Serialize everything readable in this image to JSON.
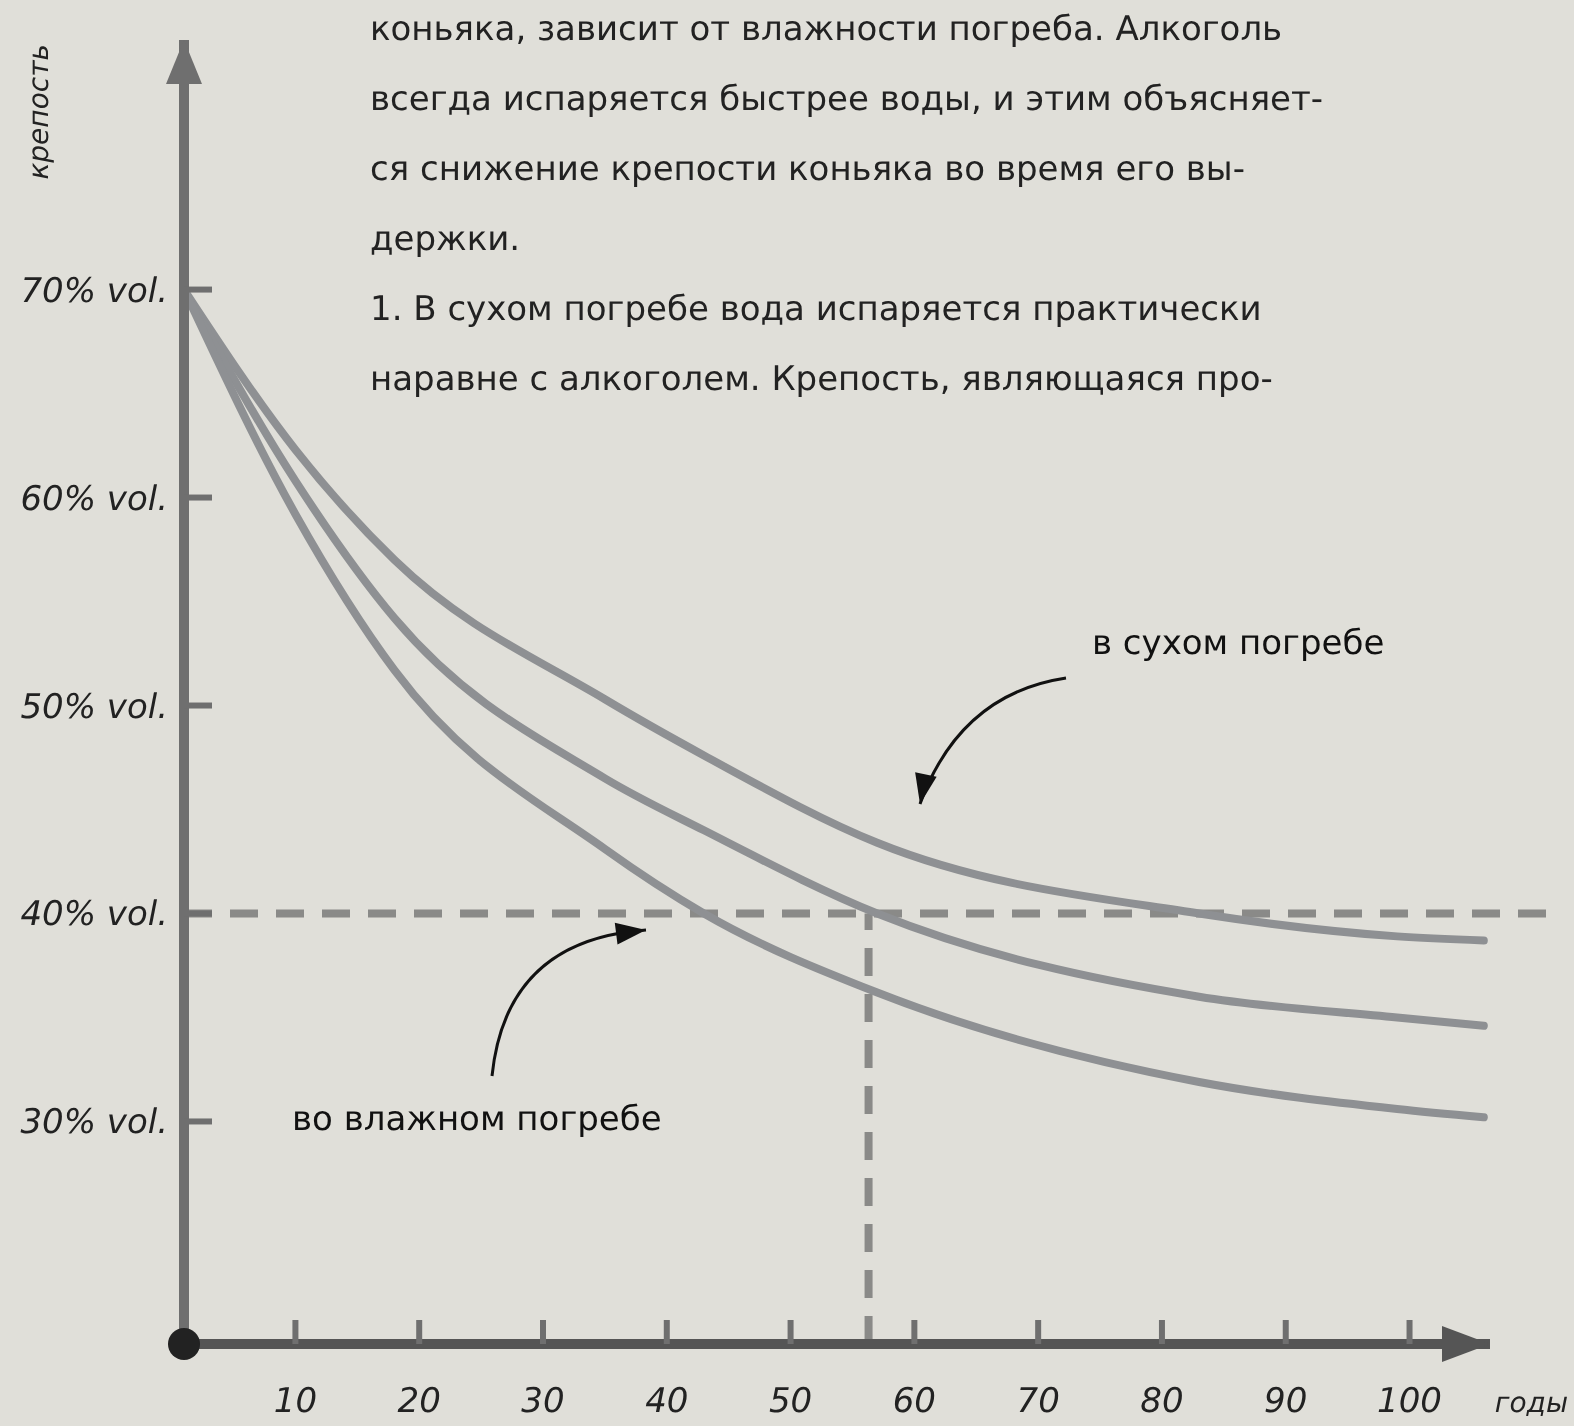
{
  "chart_data": {
    "type": "line",
    "xlabel": "годы",
    "ylabel": "крепость",
    "xlim": [
      1,
      106.5
    ],
    "ylim": [
      19.3,
      82
    ],
    "xticks": [
      10,
      20,
      30,
      40,
      50,
      60,
      70,
      80,
      90,
      100
    ],
    "yticks": [
      {
        "value": 30,
        "label": "30% vol."
      },
      {
        "value": 40,
        "label": "40% vol."
      },
      {
        "value": 50,
        "label": "50% vol."
      },
      {
        "value": 60,
        "label": "60% vol."
      },
      {
        "value": 70,
        "label": "70% vol."
      }
    ],
    "x": [
      1,
      10,
      18,
      35,
      43,
      57,
      83,
      99,
      106
    ],
    "series": [
      {
        "color": "#8e9093",
        "values": [
          70,
          62.3,
          57,
          50.3,
          47.6,
          43.4,
          40,
          38.9,
          38.7
        ]
      },
      {
        "color": "#8e9093",
        "values": [
          70,
          60.8,
          54.2,
          46.5,
          44,
          40,
          36,
          35,
          34.6
        ]
      },
      {
        "color": "#8e9093",
        "values": [
          70,
          59.2,
          51.7,
          43.1,
          40,
          36.2,
          31.9,
          30.6,
          30.2
        ]
      }
    ],
    "ref_lines": [
      {
        "axis": "y",
        "value": 40,
        "color": "#8a8a88",
        "line_style": "dashed"
      },
      {
        "axis": "x",
        "value": 56.3,
        "color": "#8a8a88",
        "line_style": "dashed"
      }
    ],
    "annotations": [
      "коньяка, зависит от влажности погреба. Алкоголь\nвсегда испаряется быстрее воды, и этим объясняет-\nся снижение крепости коньяка во время его вы-\nдержки.\n1. В сухом погребе вода испаряется практически\nнаравне с алкоголем. Крепость, являющаяся про-",
      "в сухом погребе",
      "во влажном погребе"
    ],
    "grid": false,
    "marker": "none",
    "line_style": "solid"
  }
}
